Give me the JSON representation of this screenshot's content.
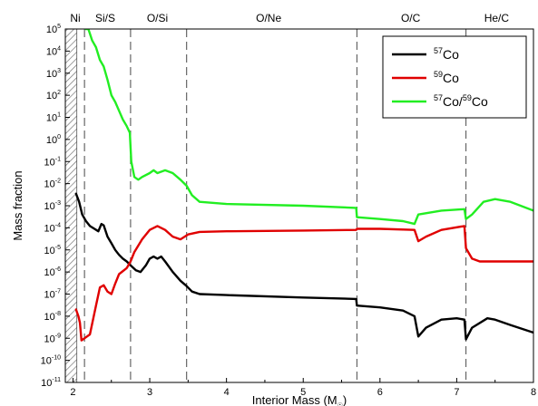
{
  "chart_data": {
    "type": "line",
    "xlabel": "Interior Mass (M",
    "xlabel_sub": "☉",
    "xlabel_close": ")",
    "ylabel": "Mass fraction",
    "xlim": [
      1.9,
      8.0
    ],
    "ylim_exp": [
      -11,
      5
    ],
    "y_scale": "log",
    "x_ticks": [
      {
        "value": 2,
        "label": "2"
      },
      {
        "value": 3,
        "label": "3"
      },
      {
        "value": 4,
        "label": "4"
      },
      {
        "value": 5,
        "label": "5"
      },
      {
        "value": 6,
        "label": "6"
      },
      {
        "value": 7,
        "label": "7"
      },
      {
        "value": 8,
        "label": "8"
      }
    ],
    "y_ticks": [
      {
        "exp": 5,
        "base": "10",
        "sup": "5"
      },
      {
        "exp": 4,
        "base": "10",
        "sup": "4"
      },
      {
        "exp": 3,
        "base": "10",
        "sup": "3"
      },
      {
        "exp": 2,
        "base": "10",
        "sup": "2"
      },
      {
        "exp": 1,
        "base": "10",
        "sup": "1"
      },
      {
        "exp": 0,
        "base": "10",
        "sup": "0"
      },
      {
        "exp": -1,
        "base": "10",
        "sup": "-1"
      },
      {
        "exp": -2,
        "base": "10",
        "sup": "-2"
      },
      {
        "exp": -3,
        "base": "10",
        "sup": "-3"
      },
      {
        "exp": -4,
        "base": "10",
        "sup": "-4"
      },
      {
        "exp": -5,
        "base": "10",
        "sup": "-5"
      },
      {
        "exp": -6,
        "base": "10",
        "sup": "-6"
      },
      {
        "exp": -7,
        "base": "10",
        "sup": "-7"
      },
      {
        "exp": -8,
        "base": "10",
        "sup": "-8"
      },
      {
        "exp": -9,
        "base": "10",
        "sup": "-9"
      },
      {
        "exp": -10,
        "base": "10",
        "sup": "-10"
      },
      {
        "exp": -11,
        "base": "10",
        "sup": "-11"
      }
    ],
    "hatched_region": {
      "x0": 1.9,
      "x1": 2.05
    },
    "zone_boundaries": [
      2.15,
      2.75,
      3.48,
      5.7,
      7.12
    ],
    "zone_labels": [
      {
        "text": "Ni",
        "x": 2.03
      },
      {
        "text": "Si/S",
        "x": 2.42
      },
      {
        "text": "O/Si",
        "x": 3.1
      },
      {
        "text": "O/Ne",
        "x": 4.55
      },
      {
        "text": "O/C",
        "x": 6.4
      },
      {
        "text": "He/C",
        "x": 7.52
      }
    ],
    "legend_position": "top-right",
    "grid": false,
    "series": [
      {
        "name_base": "57",
        "name_rest": "Co",
        "color": "#000000",
        "points": [
          [
            2.04,
            0.0035
          ],
          [
            2.08,
            0.0015
          ],
          [
            2.12,
            0.0004
          ],
          [
            2.17,
            0.0002
          ],
          [
            2.22,
            0.00012
          ],
          [
            2.28,
            9e-05
          ],
          [
            2.33,
            7e-05
          ],
          [
            2.37,
            0.00015
          ],
          [
            2.4,
            0.00013
          ],
          [
            2.45,
            4e-05
          ],
          [
            2.5,
            2e-05
          ],
          [
            2.55,
            1e-05
          ],
          [
            2.6,
            6e-06
          ],
          [
            2.65,
            4e-06
          ],
          [
            2.7,
            3e-06
          ],
          [
            2.75,
            2e-06
          ],
          [
            2.82,
            1.2e-06
          ],
          [
            2.88,
            1e-06
          ],
          [
            2.95,
            2e-06
          ],
          [
            3.0,
            4e-06
          ],
          [
            3.05,
            5e-06
          ],
          [
            3.1,
            4e-06
          ],
          [
            3.15,
            5e-06
          ],
          [
            3.2,
            3e-06
          ],
          [
            3.3,
            1e-06
          ],
          [
            3.4,
            4e-07
          ],
          [
            3.48,
            2.3e-07
          ],
          [
            3.55,
            1.3e-07
          ],
          [
            3.65,
            1e-07
          ],
          [
            4.0,
            9e-08
          ],
          [
            5.0,
            7e-08
          ],
          [
            5.69,
            6e-08
          ],
          [
            5.7,
            3e-08
          ],
          [
            6.0,
            2.5e-08
          ],
          [
            6.3,
            1.8e-08
          ],
          [
            6.45,
            1e-08
          ],
          [
            6.5,
            1.2e-09
          ],
          [
            6.6,
            3e-09
          ],
          [
            6.8,
            7e-09
          ],
          [
            7.0,
            8e-09
          ],
          [
            7.1,
            7e-09
          ],
          [
            7.12,
            9e-10
          ],
          [
            7.2,
            3e-09
          ],
          [
            7.4,
            8e-09
          ],
          [
            7.5,
            7e-09
          ],
          [
            7.7,
            4e-09
          ],
          [
            8.0,
            1.8e-09
          ]
        ]
      },
      {
        "name_base": "59",
        "name_rest": "Co",
        "color": "#e00000",
        "points": [
          [
            2.04,
            2e-08
          ],
          [
            2.07,
            1e-08
          ],
          [
            2.09,
            5e-09
          ],
          [
            2.11,
            8e-10
          ],
          [
            2.15,
            1e-09
          ],
          [
            2.22,
            1.5e-09
          ],
          [
            2.3,
            3e-08
          ],
          [
            2.35,
            2e-07
          ],
          [
            2.4,
            2.5e-07
          ],
          [
            2.45,
            1.3e-07
          ],
          [
            2.5,
            1e-07
          ],
          [
            2.55,
            3e-07
          ],
          [
            2.6,
            8e-07
          ],
          [
            2.7,
            1.5e-06
          ],
          [
            2.75,
            3e-06
          ],
          [
            2.8,
            8e-06
          ],
          [
            2.9,
            3e-05
          ],
          [
            3.0,
            8e-05
          ],
          [
            3.1,
            0.00012
          ],
          [
            3.2,
            8e-05
          ],
          [
            3.3,
            4e-05
          ],
          [
            3.4,
            3e-05
          ],
          [
            3.5,
            5e-05
          ],
          [
            3.65,
            6.5e-05
          ],
          [
            4.0,
            7e-05
          ],
          [
            5.0,
            7.5e-05
          ],
          [
            5.69,
            8e-05
          ],
          [
            5.7,
            9e-05
          ],
          [
            6.0,
            9e-05
          ],
          [
            6.45,
            8e-05
          ],
          [
            6.5,
            2.5e-05
          ],
          [
            6.6,
            4e-05
          ],
          [
            6.8,
            8e-05
          ],
          [
            7.1,
            0.00012
          ],
          [
            7.12,
            1.2e-05
          ],
          [
            7.2,
            4e-06
          ],
          [
            7.3,
            3e-06
          ],
          [
            7.5,
            3e-06
          ],
          [
            8.0,
            3e-06
          ]
        ]
      },
      {
        "name_base": "57",
        "name_rest": "Co/",
        "name_base2": "59",
        "name_rest2": "Co",
        "color": "#22ee22",
        "points": [
          [
            2.16,
            100000.0
          ],
          [
            2.2,
            100000.0
          ],
          [
            2.25,
            30000.0
          ],
          [
            2.3,
            15000.0
          ],
          [
            2.35,
            4000.0
          ],
          [
            2.4,
            2000.0
          ],
          [
            2.45,
            500.0
          ],
          [
            2.5,
            100.0
          ],
          [
            2.55,
            50.0
          ],
          [
            2.6,
            20.0
          ],
          [
            2.65,
            8
          ],
          [
            2.7,
            4
          ],
          [
            2.74,
            2
          ],
          [
            2.76,
            0.1
          ],
          [
            2.8,
            0.02
          ],
          [
            2.85,
            0.015
          ],
          [
            2.9,
            0.02
          ],
          [
            3.0,
            0.03
          ],
          [
            3.05,
            0.04
          ],
          [
            3.1,
            0.03
          ],
          [
            3.2,
            0.04
          ],
          [
            3.3,
            0.03
          ],
          [
            3.4,
            0.015
          ],
          [
            3.48,
            0.008
          ],
          [
            3.55,
            0.003
          ],
          [
            3.65,
            0.0015
          ],
          [
            4.0,
            0.0012
          ],
          [
            5.0,
            0.001
          ],
          [
            5.69,
            0.0008
          ],
          [
            5.7,
            0.0003
          ],
          [
            6.0,
            0.00025
          ],
          [
            6.3,
            0.0002
          ],
          [
            6.45,
            0.00015
          ],
          [
            6.5,
            0.0004
          ],
          [
            6.8,
            0.0006
          ],
          [
            7.1,
            0.0007
          ],
          [
            7.12,
            0.00025
          ],
          [
            7.2,
            0.0004
          ],
          [
            7.35,
            0.0015
          ],
          [
            7.5,
            0.002
          ],
          [
            7.7,
            0.0015
          ],
          [
            8.0,
            0.0006
          ]
        ]
      }
    ]
  }
}
